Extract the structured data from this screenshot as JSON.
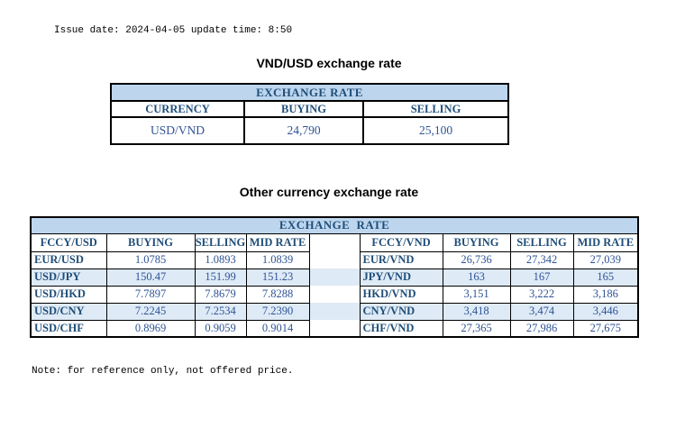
{
  "meta": {
    "issue_line": "Issue date: 2024-04-05 update time: 8:50",
    "note_line": "Note: for reference only, not offered price."
  },
  "colors": {
    "header_text": "#1F4E79",
    "data_text": "#2F5496",
    "title_row_bg": "#BDD6EE",
    "stripe_bg": "#DEEAF6",
    "border": "#000000"
  },
  "usd_table": {
    "title": "VND/USD exchange rate",
    "header": "EXCHANGE RATE",
    "columns": [
      "CURRENCY",
      "BUYING",
      "SELLING"
    ],
    "rows": [
      [
        "USD/VND",
        "24,790",
        "25,100"
      ]
    ]
  },
  "other_table": {
    "title": "Other currency exchange rate",
    "header": "EXCHANGE  RATE",
    "columns_left": [
      "FCCY/USD",
      "BUYING",
      "SELLING",
      "MID RATE"
    ],
    "columns_right": [
      "FCCY/VND",
      "BUYING",
      "SELLING",
      "MID RATE"
    ],
    "rows": [
      {
        "left": [
          "EUR/USD",
          "1.0785",
          "1.0893",
          "1.0839"
        ],
        "right": [
          "EUR/VND",
          "26,736",
          "27,342",
          "27,039"
        ]
      },
      {
        "left": [
          "USD/JPY",
          "150.47",
          "151.99",
          "151.23"
        ],
        "right": [
          "JPY/VND",
          "163",
          "167",
          "165"
        ]
      },
      {
        "left": [
          "USD/HKD",
          "7.7897",
          "7.8679",
          "7.8288"
        ],
        "right": [
          "HKD/VND",
          "3,151",
          "3,222",
          "3,186"
        ]
      },
      {
        "left": [
          "USD/CNY",
          "7.2245",
          "7.2534",
          "7.2390"
        ],
        "right": [
          "CNY/VND",
          "3,418",
          "3,474",
          "3,446"
        ]
      },
      {
        "left": [
          "USD/CHF",
          "0.8969",
          "0.9059",
          "0.9014"
        ],
        "right": [
          "CHF/VND",
          "27,365",
          "27,986",
          "27,675"
        ]
      }
    ]
  }
}
